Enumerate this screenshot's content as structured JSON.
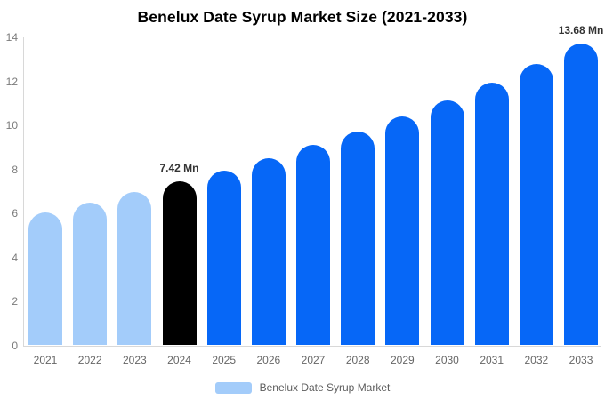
{
  "title": "Benelux Date Syrup Market Size (2021-2033)",
  "chart_data": {
    "type": "bar",
    "title": "Benelux Date Syrup Market Size (2021-2033)",
    "categories": [
      "2021",
      "2022",
      "2023",
      "2024",
      "2025",
      "2026",
      "2027",
      "2028",
      "2029",
      "2030",
      "2031",
      "2032",
      "2033"
    ],
    "values": [
      6.02,
      6.47,
      6.93,
      7.42,
      7.9,
      8.46,
      9.06,
      9.7,
      10.38,
      11.11,
      11.89,
      12.73,
      13.68
    ],
    "bar_colors": [
      "#a3ccfa",
      "#a3ccfa",
      "#a3ccfa",
      "#000000",
      "#0667f7",
      "#0667f7",
      "#0667f7",
      "#0667f7",
      "#0667f7",
      "#0667f7",
      "#0667f7",
      "#0667f7",
      "#0667f7"
    ],
    "annotations": [
      {
        "index": 3,
        "text": "7.42 Mn"
      },
      {
        "index": 12,
        "text": "13.68 Mn"
      }
    ],
    "xlabel": "",
    "ylabel": "",
    "ylim": [
      0,
      14
    ],
    "yticks": [
      0,
      2,
      4,
      6,
      8,
      10,
      12,
      14
    ],
    "grid": false,
    "legend": {
      "label": "Benelux Date Syrup Market",
      "position": "bottom",
      "swatch_color": "#a3ccfa"
    }
  },
  "colors": {
    "axis": "#d8d8d8",
    "tick_text": "#7b7b7b",
    "category_text": "#666666",
    "annotation_text": "#333333",
    "background": "#ffffff"
  }
}
